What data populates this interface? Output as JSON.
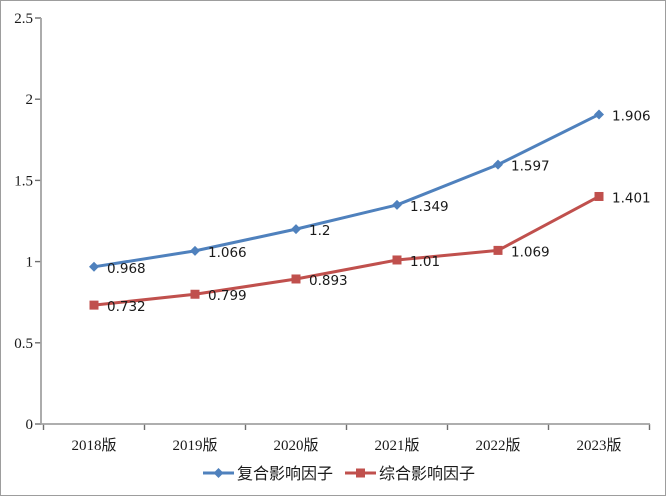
{
  "chart_data": {
    "type": "line",
    "categories": [
      "2018版",
      "2019版",
      "2020版",
      "2021版",
      "2022版",
      "2023版"
    ],
    "series": [
      {
        "name": "复合影响因子",
        "marker": "diamond",
        "color": "#4f81bd",
        "values": [
          0.968,
          1.066,
          1.2,
          1.349,
          1.597,
          1.906
        ],
        "labels": [
          "0.968",
          "1.066",
          "1.2",
          "1.349",
          "1.597",
          "1.906"
        ]
      },
      {
        "name": "综合影响因子",
        "marker": "square",
        "color": "#c0504d",
        "values": [
          0.732,
          0.799,
          0.893,
          1.01,
          1.069,
          1.401
        ],
        "labels": [
          "0.732",
          "0.799",
          "0.893",
          "1.01",
          "1.069",
          "1.401"
        ]
      }
    ],
    "title": "",
    "xlabel": "",
    "ylabel": "",
    "ylim": [
      0,
      2.5
    ],
    "ytick_step": 0.5,
    "ytick_labels": [
      "0",
      "0.5",
      "1",
      "1.5",
      "2",
      "2.5"
    ],
    "grid": false,
    "legend_position": "bottom"
  },
  "colors": {
    "background": "#ffffff",
    "frame_border": "#9d9d9d",
    "axis_line": "#a3a3a3",
    "tick_mark": "#6e6e6e",
    "text": "#1a1a1a",
    "series_blue": "#4f81bd",
    "series_red": "#c0504d"
  }
}
